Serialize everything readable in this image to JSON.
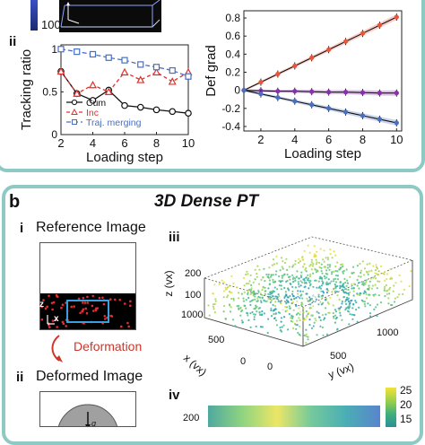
{
  "panel_a": {
    "colorbar_tick": "100",
    "sub_ii_label": "ii",
    "chart_left": {
      "ylabel": "Tracking ratio",
      "xlabel": "Loading step",
      "x_ticks": [
        "2",
        "4",
        "6",
        "8",
        "10"
      ],
      "y_ticks": [
        "0",
        "0.5",
        "1"
      ],
      "legend": [
        "Cum",
        "Inc",
        "Traj. merging"
      ]
    },
    "chart_right": {
      "ylabel": "Def grad",
      "xlabel": "Loading step",
      "x_ticks": [
        "2",
        "4",
        "6",
        "8",
        "10"
      ],
      "y_ticks": [
        "-0.4",
        "-0.2",
        "0",
        "0.2",
        "0.4",
        "0.6",
        "0.8"
      ]
    }
  },
  "panel_b": {
    "letter": "b",
    "title": "3D Dense PT",
    "sub_i": "i",
    "ref_image_title": "Reference Image",
    "axis_z": "z",
    "axis_x": "x",
    "deformation_label": "Deformation",
    "sub_ii": "ii",
    "deformed_image_title": "Deformed Image",
    "sub_iii": "iii",
    "iii_zlabel": "z (vx)",
    "iii_xlabel": "x (vx)",
    "iii_ylabel": "y (vx)",
    "iii_z_ticks": [
      "200",
      "100"
    ],
    "iii_x_ticks": [
      "1000",
      "500",
      "0"
    ],
    "iii_y_ticks": [
      "0",
      "500",
      "1000"
    ],
    "sub_iv": "iv",
    "iv_z_tick": "200",
    "iv_colorbar_ticks": [
      "25",
      "20",
      "15"
    ]
  },
  "colors": {
    "frame": "#8ec9c4",
    "cum": "#111111",
    "inc": "#e0302a",
    "merge": "#4a6fc0",
    "def_up": "#e8553a",
    "def_flat": "#8a2fb0",
    "def_down": "#4a6fc0",
    "deformation_arrow": "#d0352a"
  },
  "chart_data": [
    {
      "type": "line",
      "x": [
        2,
        3,
        4,
        5,
        6,
        7,
        8,
        9,
        10
      ],
      "series": [
        {
          "name": "Cum",
          "values": [
            0.74,
            0.48,
            0.4,
            0.52,
            0.34,
            0.32,
            0.29,
            0.27,
            0.25
          ]
        },
        {
          "name": "Inc",
          "values": [
            0.74,
            0.48,
            0.58,
            0.5,
            0.73,
            0.64,
            0.73,
            0.62,
            0.73
          ]
        },
        {
          "name": "Traj. merging",
          "values": [
            1.0,
            0.97,
            0.94,
            0.9,
            0.87,
            0.82,
            0.79,
            0.75,
            0.68
          ]
        }
      ],
      "xlabel": "Loading step",
      "ylabel": "Tracking ratio",
      "xlim": [
        2,
        10
      ],
      "ylim": [
        0,
        1.05
      ],
      "legend": "bottom-left"
    },
    {
      "type": "line",
      "x": [
        1,
        2,
        3,
        4,
        5,
        6,
        7,
        8,
        9,
        10
      ],
      "series": [
        {
          "values": [
            0.0,
            0.09,
            0.18,
            0.27,
            0.36,
            0.45,
            0.54,
            0.63,
            0.72,
            0.81
          ]
        },
        {
          "values": [
            0.0,
            -0.005,
            -0.01,
            -0.01,
            -0.015,
            -0.02,
            -0.02,
            -0.025,
            -0.03,
            -0.03
          ]
        },
        {
          "values": [
            0.0,
            -0.04,
            -0.08,
            -0.12,
            -0.16,
            -0.2,
            -0.24,
            -0.28,
            -0.32,
            -0.36
          ]
        }
      ],
      "xlabel": "Loading step",
      "ylabel": "Def grad",
      "xlim": [
        1,
        10.3
      ],
      "ylim": [
        -0.45,
        0.88
      ]
    }
  ]
}
